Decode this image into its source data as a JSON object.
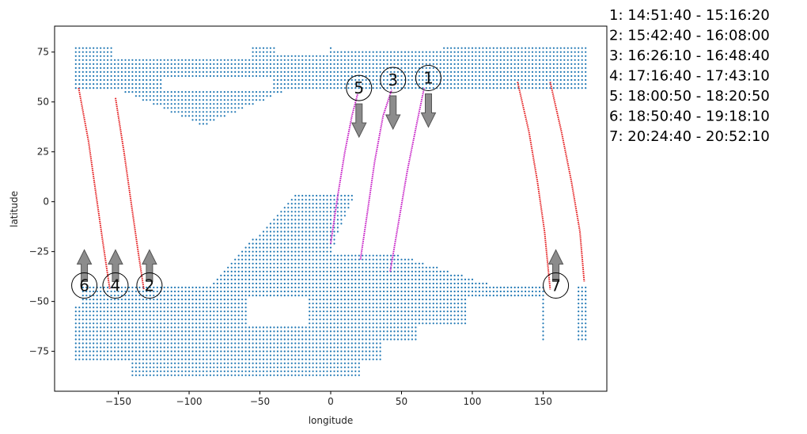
{
  "chart_data": {
    "type": "scatter",
    "title": "",
    "xlabel": "longitude",
    "ylabel": "latitude",
    "xlim": [
      -195,
      195
    ],
    "ylim": [
      -95,
      88
    ],
    "xticks": [
      -150,
      -100,
      -50,
      0,
      50,
      100,
      150
    ],
    "yticks": [
      -75,
      -50,
      -25,
      0,
      25,
      50,
      75
    ],
    "grid": false,
    "colors": {
      "land_points": "#1f77b4",
      "track_red": "#e41a1c",
      "track_magenta": "#c51bc5",
      "arrow_fill": "#808080",
      "arrow_stroke": "#555555"
    },
    "tracks": [
      {
        "id": "1",
        "color_key": "track_magenta",
        "points": [
          [
            42,
            -35
          ],
          [
            48,
            -10
          ],
          [
            54,
            15
          ],
          [
            61,
            40
          ],
          [
            66,
            57
          ]
        ]
      },
      {
        "id": "2",
        "color_key": "track_red",
        "points": [
          [
            -152,
            52
          ],
          [
            -146,
            25
          ],
          [
            -141,
            0
          ],
          [
            -136,
            -25
          ],
          [
            -132,
            -44
          ]
        ]
      },
      {
        "id": "3",
        "color_key": "track_magenta",
        "points": [
          [
            21,
            -29
          ],
          [
            26,
            -5
          ],
          [
            31,
            20
          ],
          [
            37,
            43
          ],
          [
            43,
            56
          ]
        ]
      },
      {
        "id": "4",
        "color_key": "track_red",
        "points": [
          [
            -178,
            57
          ],
          [
            -171,
            30
          ],
          [
            -166,
            5
          ],
          [
            -161,
            -20
          ],
          [
            -156,
            -44
          ]
        ]
      },
      {
        "id": "5",
        "color_key": "track_magenta",
        "points": [
          [
            0,
            -21
          ],
          [
            5,
            3
          ],
          [
            10,
            25
          ],
          [
            15,
            43
          ],
          [
            19,
            54
          ]
        ]
      },
      {
        "id": "6",
        "color_key": "track_red",
        "points": [
          [
            132,
            60
          ],
          [
            140,
            35
          ],
          [
            146,
            10
          ],
          [
            151,
            -15
          ],
          [
            155,
            -44
          ]
        ]
      },
      {
        "id": "7",
        "color_key": "track_red",
        "points": [
          [
            155,
            60
          ],
          [
            163,
            35
          ],
          [
            170,
            10
          ],
          [
            176,
            -15
          ],
          [
            179,
            -40
          ]
        ]
      }
    ],
    "markers": [
      {
        "label": "1",
        "x": 69,
        "y": 62,
        "arrow": "down"
      },
      {
        "label": "2",
        "x": -128,
        "y": -42,
        "arrow": "up"
      },
      {
        "label": "3",
        "x": 44,
        "y": 61,
        "arrow": "down"
      },
      {
        "label": "4",
        "x": -152,
        "y": -42,
        "arrow": "up"
      },
      {
        "label": "5",
        "x": 20,
        "y": 57,
        "arrow": "down"
      },
      {
        "label": "6",
        "x": -174,
        "y": -42,
        "arrow": "up"
      },
      {
        "label": "7",
        "x": 159,
        "y": -42,
        "arrow": "up"
      }
    ],
    "legend": {
      "placement": "right-outside",
      "entries": [
        "1:  14:51:40 - 15:16:20",
        "2:  15:42:40 - 16:08:00",
        "3:  16:26:10 - 16:48:40",
        "4:  17:16:40 - 17:43:10",
        "5:  18:00:50 - 18:20:50",
        "6:  18:50:40 - 19:18:10",
        "7:  20:24:40 - 20:52:10"
      ]
    }
  }
}
